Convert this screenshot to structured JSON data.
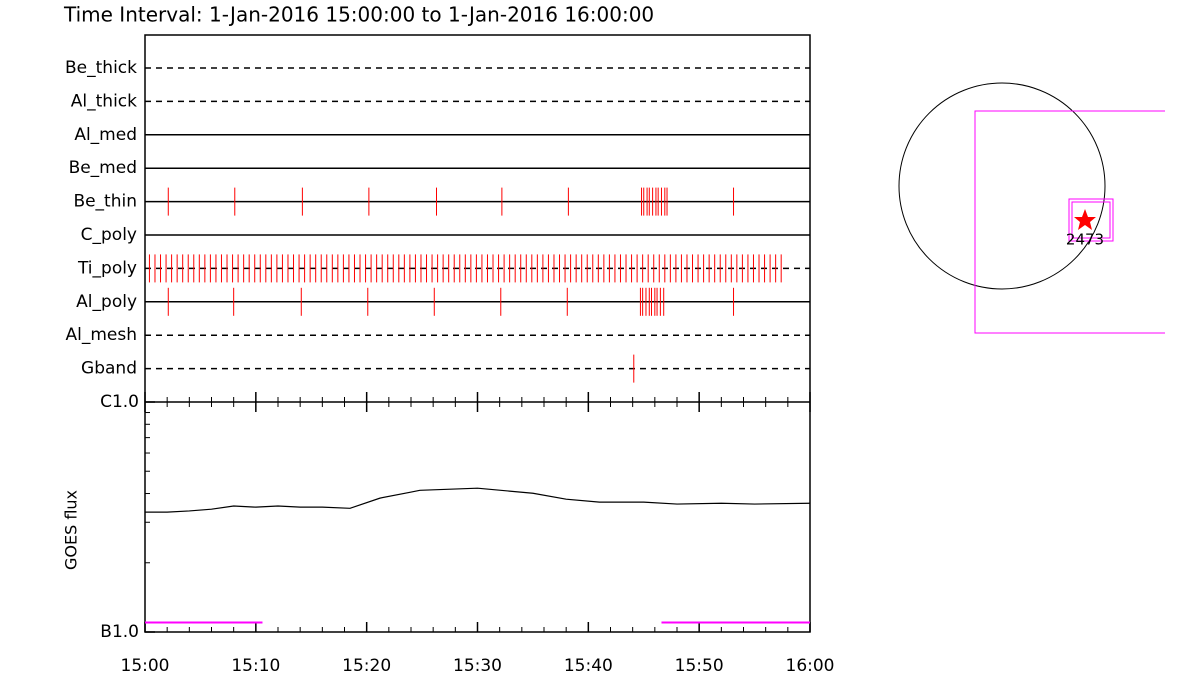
{
  "chart_data": [
    {
      "type": "timeline",
      "title": "Time Interval:  1-Jan-2016 15:00:00 to  1-Jan-2016 16:00:00",
      "xlim": [
        0,
        60
      ],
      "color": "#ff0000",
      "filters": [
        {
          "name": "Be_thick",
          "style": "dashed",
          "times": []
        },
        {
          "name": "Al_thick",
          "style": "dashed",
          "times": []
        },
        {
          "name": "Al_med",
          "style": "solid",
          "times": []
        },
        {
          "name": "Be_med",
          "style": "solid",
          "times": []
        },
        {
          "name": "Be_thin",
          "style": "solid",
          "times": [
            2.1,
            8.1,
            14.2,
            20.2,
            26.3,
            32.2,
            38.2,
            44.8,
            45.0,
            45.3,
            45.5,
            45.8,
            46.1,
            46.3,
            46.6,
            46.9,
            47.1,
            53.1
          ]
        },
        {
          "name": "C_poly",
          "style": "solid",
          "times": []
        },
        {
          "name": "Ti_poly",
          "style": "dashed",
          "times": [
            0.4,
            0.9,
            1.4,
            1.9,
            2.4,
            2.9,
            3.4,
            3.9,
            4.4,
            4.9,
            5.4,
            5.9,
            6.4,
            6.9,
            7.4,
            7.9,
            8.4,
            8.9,
            9.4,
            9.9,
            10.4,
            10.9,
            11.4,
            11.9,
            12.4,
            12.9,
            13.4,
            13.9,
            14.4,
            14.9,
            15.4,
            15.9,
            16.4,
            16.9,
            17.4,
            17.9,
            18.4,
            18.9,
            19.4,
            19.9,
            20.4,
            20.9,
            21.4,
            21.9,
            22.4,
            22.9,
            23.4,
            23.9,
            24.4,
            24.9,
            25.4,
            25.9,
            26.4,
            26.9,
            27.4,
            27.9,
            28.4,
            28.9,
            29.4,
            29.9,
            30.4,
            30.9,
            31.4,
            31.9,
            32.4,
            32.9,
            33.4,
            33.9,
            34.4,
            34.9,
            35.4,
            35.9,
            36.4,
            36.9,
            37.4,
            37.9,
            38.4,
            38.9,
            39.4,
            39.9,
            40.4,
            40.9,
            41.4,
            41.9,
            42.4,
            42.9,
            43.4,
            43.9,
            44.4,
            44.9,
            45.4,
            45.9,
            46.4,
            46.9,
            47.4,
            47.9,
            48.4,
            48.9,
            49.4,
            49.9,
            50.4,
            50.9,
            51.4,
            51.9,
            52.4,
            52.9,
            53.4,
            53.9,
            54.4,
            54.9,
            55.4,
            55.9,
            56.4,
            56.9,
            57.4
          ]
        },
        {
          "name": "Al_poly",
          "style": "solid",
          "times": [
            2.1,
            8.0,
            14.1,
            20.1,
            26.1,
            32.1,
            38.1,
            44.7,
            44.9,
            45.2,
            45.5,
            45.7,
            46.0,
            46.2,
            46.5,
            46.8,
            53.1
          ]
        },
        {
          "name": "Al_mesh",
          "style": "dashed",
          "times": []
        },
        {
          "name": "Gband",
          "style": "dashed",
          "times": [
            44.1
          ]
        }
      ]
    },
    {
      "type": "line",
      "ylabel": "GOES flux",
      "log_scale": true,
      "color": "#000000",
      "xlim": [
        0,
        60
      ],
      "xticks": [
        {
          "value": 0,
          "label": "15:00"
        },
        {
          "value": 10,
          "label": "15:10"
        },
        {
          "value": 20,
          "label": "15:20"
        },
        {
          "value": 30,
          "label": "15:30"
        },
        {
          "value": 40,
          "label": "15:40"
        },
        {
          "value": 50,
          "label": "15:50"
        },
        {
          "value": 60,
          "label": "16:00"
        }
      ],
      "x_minor_ticks": [
        2,
        4,
        6,
        8,
        12,
        14,
        16,
        18,
        22,
        24,
        26,
        28,
        32,
        34,
        36,
        38,
        42,
        44,
        46,
        48,
        52,
        54,
        56,
        58
      ],
      "ylim": [
        1e-07,
        1e-06
      ],
      "yticks": [
        {
          "value": 1e-07,
          "label": "B1.0"
        },
        {
          "value": 1e-06,
          "label": "C1.0"
        }
      ],
      "y_minor_ticks": [
        2e-07,
        3e-07,
        4e-07,
        5e-07,
        6e-07,
        7e-07,
        8e-07,
        9e-07
      ],
      "x": [
        0,
        2,
        4,
        6,
        8,
        10,
        12,
        14,
        16,
        18.5,
        21.2,
        23.9,
        24.8,
        30,
        35,
        38,
        41,
        45,
        48,
        52,
        55,
        60
      ],
      "values": [
        3.32e-07,
        3.32e-07,
        3.36e-07,
        3.42e-07,
        3.53e-07,
        3.49e-07,
        3.53e-07,
        3.49e-07,
        3.49e-07,
        3.45e-07,
        3.82e-07,
        4.05e-07,
        4.13e-07,
        4.22e-07,
        4.01e-07,
        3.78e-07,
        3.67e-07,
        3.67e-07,
        3.6e-07,
        3.63e-07,
        3.6e-07,
        3.63e-07
      ],
      "intervals": {
        "color": "#ff00ff",
        "level": 1.1e-07,
        "spans": [
          {
            "start": 0,
            "end": 10.6
          },
          {
            "start": 46.6,
            "end": 60
          }
        ]
      }
    }
  ],
  "map": {
    "region_label": "2473"
  }
}
